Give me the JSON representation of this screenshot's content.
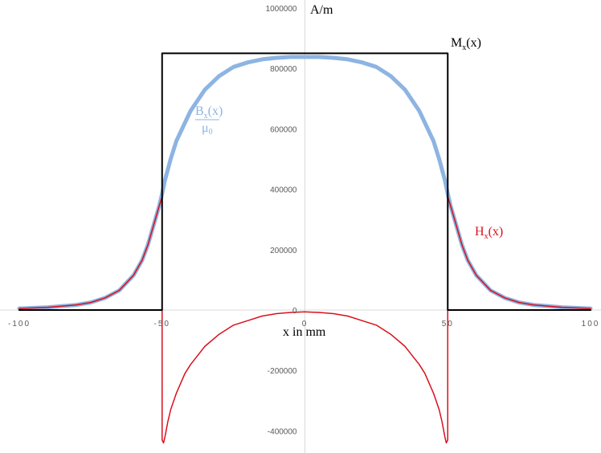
{
  "chart_data": {
    "type": "line",
    "xlabel": "x in mm",
    "ylabel": "A/m",
    "xlim": [
      -100,
      100
    ],
    "ylim": [
      -450000,
      1000000
    ],
    "x_ticks": [
      -100,
      -50,
      0,
      50,
      100
    ],
    "y_ticks": [
      -400000,
      -200000,
      0,
      200000,
      400000,
      600000,
      800000,
      1000000
    ],
    "x_tick_labels": [
      "-100",
      "-50",
      "0",
      "50",
      "100"
    ],
    "y_tick_labels": [
      "-400000",
      "-200000",
      "0",
      "200000",
      "400000",
      "600000",
      "800000",
      "1000000"
    ],
    "grid": false,
    "series": [
      {
        "name": "Mx(x)",
        "label_main": "M",
        "label_sub": "x",
        "label_tail": "(x)",
        "color": "#000000",
        "x": [
          -100,
          -50,
          -50,
          50,
          50,
          100
        ],
        "y": [
          0,
          0,
          850000,
          850000,
          0,
          0
        ]
      },
      {
        "name": "Bx(x)/μ0",
        "label_main": "B",
        "label_sub": "x",
        "label_tail": "(x)",
        "label_den": "μ",
        "label_den_sub": "0",
        "color": "#8db4e2",
        "x": [
          -100,
          -90,
          -80,
          -75,
          -70,
          -65,
          -60,
          -57,
          -55,
          -53,
          -51,
          -50,
          -49,
          -47,
          -45,
          -42,
          -40,
          -35,
          -30,
          -25,
          -20,
          -15,
          -10,
          -5,
          0,
          5,
          10,
          15,
          20,
          25,
          30,
          35,
          40,
          42,
          45,
          47,
          49,
          50,
          51,
          53,
          55,
          57,
          60,
          65,
          70,
          75,
          80,
          90,
          100
        ],
        "y": [
          5000,
          9000,
          17000,
          25000,
          40000,
          65000,
          115000,
          165000,
          215000,
          280000,
          345000,
          385000,
          430000,
          500000,
          560000,
          620000,
          660000,
          730000,
          775000,
          805000,
          820000,
          830000,
          835000,
          838000,
          838000,
          838000,
          835000,
          830000,
          820000,
          805000,
          775000,
          730000,
          660000,
          620000,
          560000,
          500000,
          430000,
          385000,
          345000,
          280000,
          215000,
          165000,
          115000,
          65000,
          40000,
          25000,
          17000,
          9000,
          5000
        ]
      },
      {
        "name": "Hx(x)",
        "label_main": "H",
        "label_sub": "x",
        "label_tail": "(x)",
        "color": "#d9101c",
        "x": [
          -100,
          -90,
          -80,
          -75,
          -70,
          -65,
          -60,
          -57,
          -55,
          -53,
          -51,
          -50,
          -50,
          -49.5,
          -49,
          -48,
          -47,
          -45,
          -42,
          -40,
          -35,
          -30,
          -25,
          -20,
          -15,
          -10,
          -5,
          0,
          5,
          10,
          15,
          20,
          25,
          30,
          35,
          40,
          42,
          45,
          47,
          48,
          49,
          49.5,
          50,
          50,
          51,
          53,
          55,
          57,
          60,
          65,
          70,
          75,
          80,
          90,
          100
        ],
        "y": [
          5000,
          9000,
          17000,
          25000,
          40000,
          65000,
          115000,
          165000,
          215000,
          280000,
          345000,
          375000,
          -430000,
          -440000,
          -420000,
          -370000,
          -330000,
          -275000,
          -210000,
          -180000,
          -120000,
          -80000,
          -50000,
          -35000,
          -20000,
          -12000,
          -8000,
          -6000,
          -8000,
          -12000,
          -20000,
          -35000,
          -50000,
          -80000,
          -120000,
          -180000,
          -210000,
          -275000,
          -330000,
          -370000,
          -420000,
          -440000,
          -430000,
          375000,
          345000,
          280000,
          215000,
          165000,
          115000,
          65000,
          40000,
          25000,
          17000,
          9000,
          5000
        ]
      }
    ]
  }
}
